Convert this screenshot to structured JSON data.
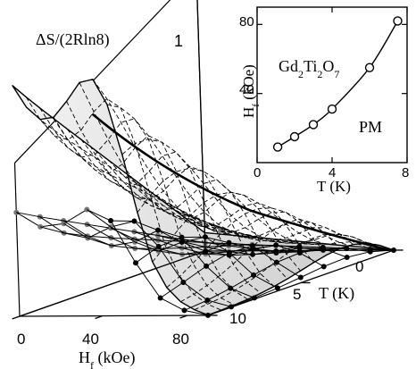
{
  "chart_data": [
    {
      "type": "surface",
      "z_label": "ΔS/(2Rln8)",
      "z_tick_labels": [
        "1"
      ],
      "xlabel": "H",
      "xlabel_sub": "f",
      "xlabel_unit": " (kOe)",
      "x_tick_labels": [
        "0",
        "40",
        "80"
      ],
      "ylabel": "T (K)",
      "y_tick_labels": [
        "0",
        "5",
        "10"
      ],
      "x_range": [
        0,
        90
      ],
      "y_range": [
        0,
        10
      ],
      "z_range": [
        0,
        1
      ]
    },
    {
      "type": "line",
      "xlabel": "T (K)",
      "ylabel": "H",
      "ylabel_sub": "f",
      "ylabel_unit": " (kOe)",
      "x_ticks": [
        0,
        4,
        8
      ],
      "y_ticks": [
        40,
        80
      ],
      "xlim": [
        0,
        8
      ],
      "ylim": [
        0,
        90
      ],
      "marker": "open-circle",
      "x": [
        1.1,
        2.0,
        3.0,
        4.0,
        6.0,
        7.5
      ],
      "y": [
        9,
        15,
        22,
        31,
        55,
        82
      ],
      "annotations": [
        {
          "parts": [
            "Gd",
            "2",
            "Ti",
            "2",
            "O",
            "7"
          ]
        },
        {
          "text": "PM"
        }
      ]
    }
  ]
}
